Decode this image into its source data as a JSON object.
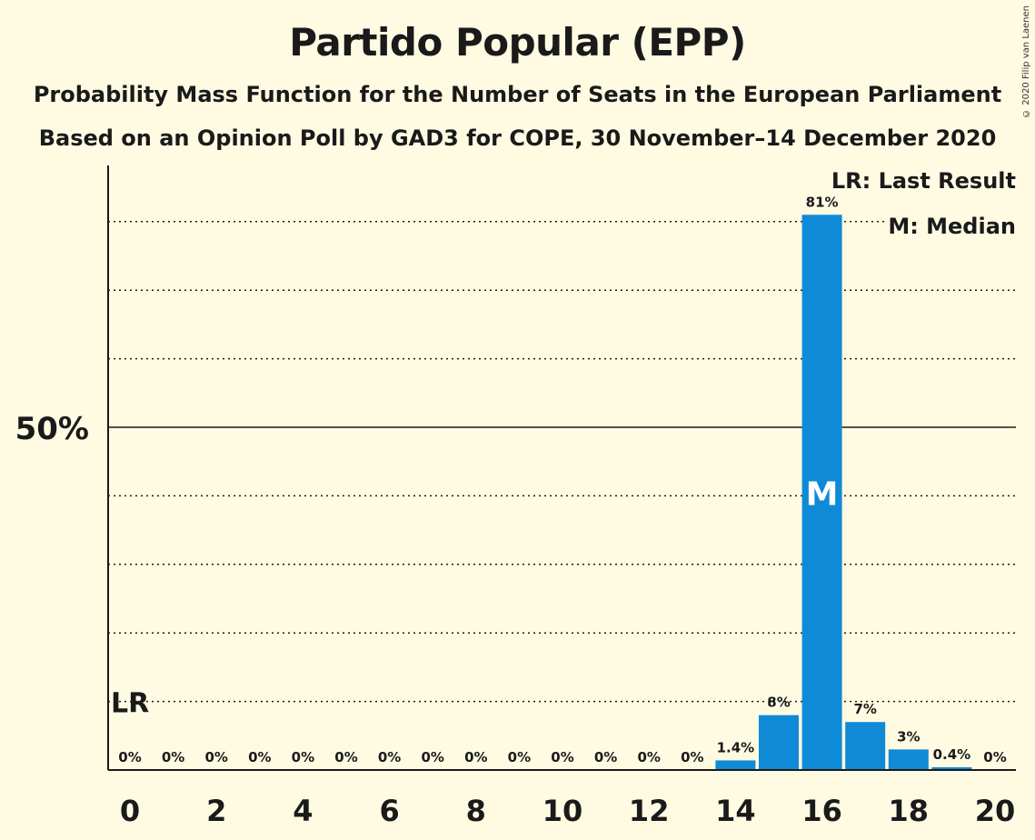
{
  "title": "Partido Popular (EPP)",
  "subtitle1": "Probability Mass Function for the Number of Seats in the European Parliament",
  "subtitle2": "Based on an Opinion Poll by GAD3 for COPE, 30 November–14 December 2020",
  "copyright": "© 2020 Filip van Laenen",
  "legend": {
    "last_result": "LR: Last Result",
    "median": "M: Median"
  },
  "colors": {
    "background": "#fffbe3",
    "bar": "#0f8ad6",
    "text": "#1a1a1a"
  },
  "chart_data": {
    "type": "bar",
    "title": "Partido Popular (EPP)",
    "x": [
      0,
      1,
      2,
      3,
      4,
      5,
      6,
      7,
      8,
      9,
      10,
      11,
      12,
      13,
      14,
      15,
      16,
      17,
      18,
      19,
      20
    ],
    "values": [
      0,
      0,
      0,
      0,
      0,
      0,
      0,
      0,
      0,
      0,
      0,
      0,
      0,
      0,
      1.4,
      8,
      81,
      7,
      3,
      0.4,
      0
    ],
    "data_labels": [
      "0%",
      "0%",
      "0%",
      "0%",
      "0%",
      "0%",
      "0%",
      "0%",
      "0%",
      "0%",
      "0%",
      "0%",
      "0%",
      "0%",
      "1.4%",
      "8%",
      "81%",
      "7%",
      "3%",
      "0.4%",
      "0%"
    ],
    "x_ticks": [
      "0",
      "2",
      "4",
      "6",
      "8",
      "10",
      "12",
      "14",
      "16",
      "18",
      "20"
    ],
    "y_tick_label": "50%",
    "y_tick_value": 50,
    "ylim": [
      0,
      90
    ],
    "gridlines": [
      10,
      20,
      30,
      40,
      60,
      70,
      80
    ],
    "last_result": {
      "x": 0,
      "label": "LR",
      "line_value": 10
    },
    "median": {
      "x": 16,
      "label": "M"
    }
  }
}
